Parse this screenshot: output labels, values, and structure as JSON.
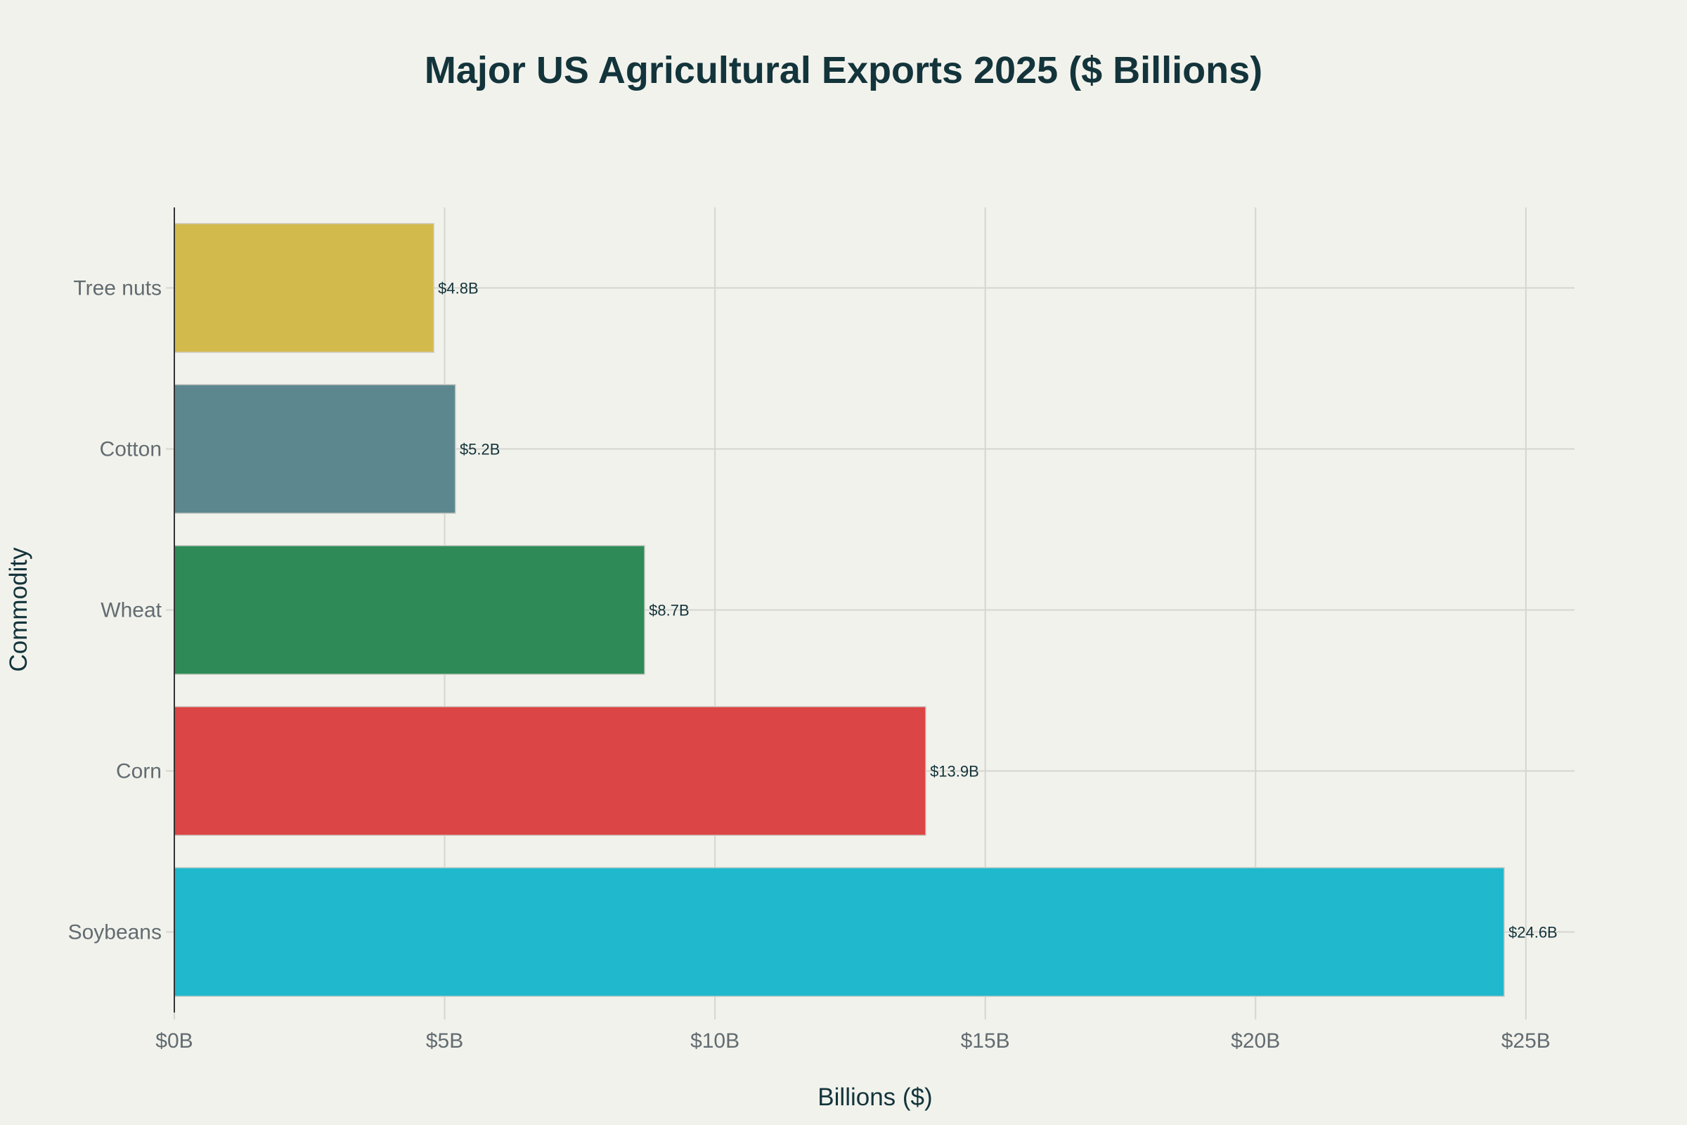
{
  "chart_data": {
    "type": "bar",
    "orientation": "horizontal",
    "title": "Major US Agricultural Exports 2025 ($ Billions)",
    "xlabel": "Billions ($)",
    "ylabel": "Commodity",
    "categories": [
      "Soybeans",
      "Corn",
      "Wheat",
      "Cotton",
      "Tree nuts"
    ],
    "values": [
      24.6,
      13.9,
      8.7,
      5.2,
      4.8
    ],
    "value_labels": [
      "$24.6B",
      "$13.9B",
      "$8.7B",
      "$5.2B",
      "$4.8B"
    ],
    "colors": [
      "#1fb8cd",
      "#db4545",
      "#2e8b57",
      "#5d878f",
      "#d2ba4c"
    ],
    "xlim": [
      0,
      25.9
    ],
    "xticks": [
      0,
      5,
      10,
      15,
      20,
      25
    ],
    "xtick_labels": [
      "$0B",
      "$5B",
      "$10B",
      "$15B",
      "$20B",
      "$25B"
    ],
    "grid": true,
    "legend": "none"
  }
}
